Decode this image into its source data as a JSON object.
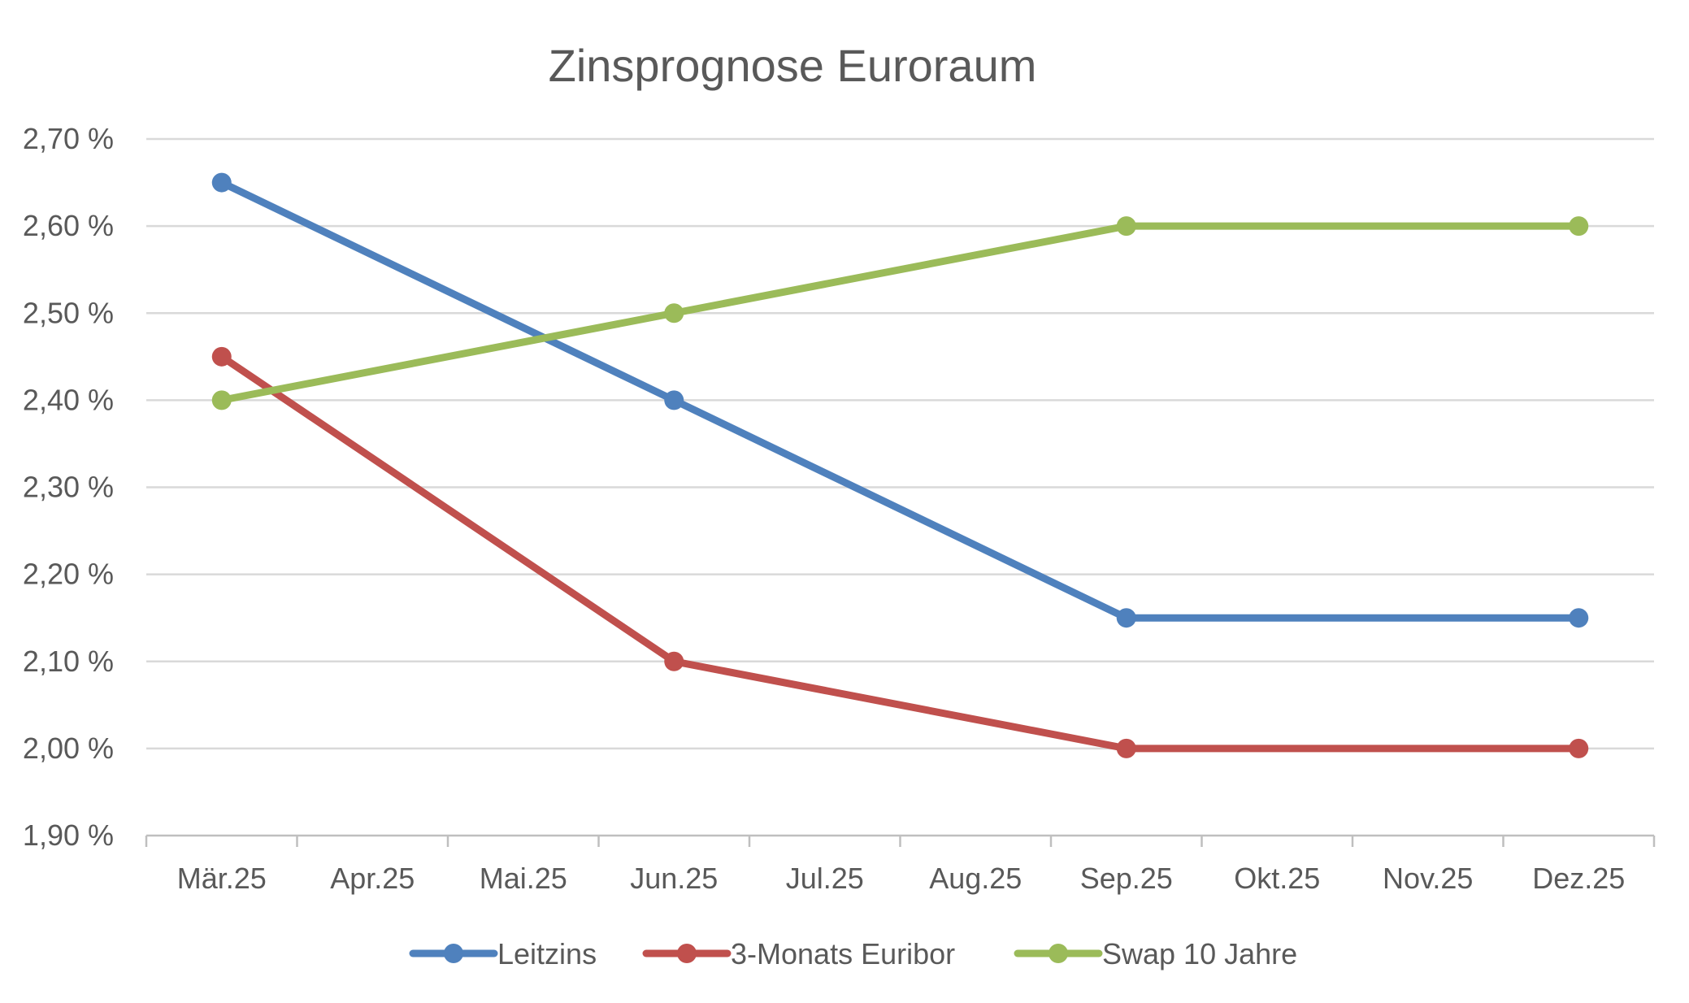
{
  "chart_data": {
    "type": "line",
    "title": "Zinsprognose Euroraum",
    "categories": [
      "Mär.25",
      "Apr.25",
      "Mai.25",
      "Jun.25",
      "Jul.25",
      "Aug.25",
      "Sep.25",
      "Okt.25",
      "Nov.25",
      "Dez.25"
    ],
    "y_tick_labels": [
      "1,90 %",
      "2,00 %",
      "2,10 %",
      "2,20 %",
      "2,30 %",
      "2,40 %",
      "2,50 %",
      "2,60 %",
      "2,70 %"
    ],
    "y_ticks": [
      1.9,
      2.0,
      2.1,
      2.2,
      2.3,
      2.4,
      2.5,
      2.6,
      2.7
    ],
    "ylim": [
      1.9,
      2.7
    ],
    "grid": true,
    "legend_position": "bottom",
    "series": [
      {
        "name": "Leitzins",
        "color": "#4F81BD",
        "points": [
          {
            "x": "Mär.25",
            "y": 2.65
          },
          {
            "x": "Jun.25",
            "y": 2.4
          },
          {
            "x": "Sep.25",
            "y": 2.15
          },
          {
            "x": "Dez.25",
            "y": 2.15
          }
        ]
      },
      {
        "name": "3-Monats Euribor",
        "color": "#C0504D",
        "points": [
          {
            "x": "Mär.25",
            "y": 2.45
          },
          {
            "x": "Jun.25",
            "y": 2.1
          },
          {
            "x": "Sep.25",
            "y": 2.0
          },
          {
            "x": "Dez.25",
            "y": 2.0
          }
        ]
      },
      {
        "name": "Swap 10 Jahre",
        "color": "#9BBB59",
        "points": [
          {
            "x": "Mär.25",
            "y": 2.4
          },
          {
            "x": "Jun.25",
            "y": 2.5
          },
          {
            "x": "Sep.25",
            "y": 2.6
          },
          {
            "x": "Dez.25",
            "y": 2.6
          }
        ]
      }
    ]
  }
}
